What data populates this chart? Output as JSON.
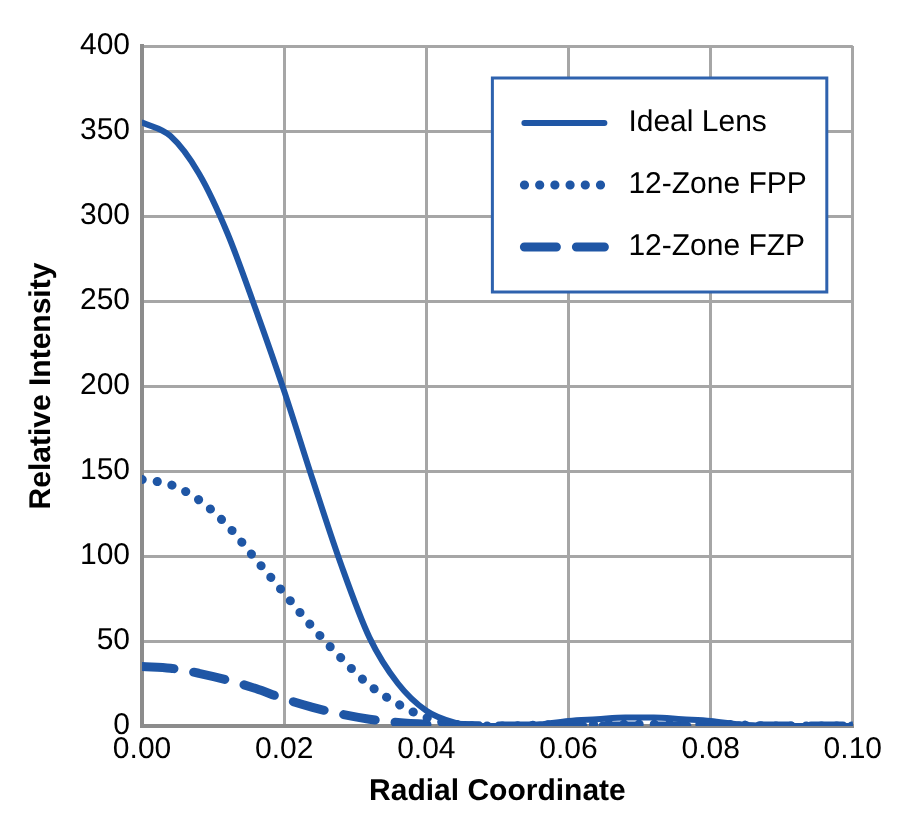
{
  "chart_data": {
    "type": "line",
    "xlabel": "Radial Coordinate",
    "ylabel": "Relative Intensity",
    "xlim": [
      0,
      0.1
    ],
    "xticks": [
      {
        "value": 0,
        "label": "0.00"
      },
      {
        "value": 0.02,
        "label": "0.02"
      },
      {
        "value": 0.04,
        "label": "0.04"
      },
      {
        "value": 0.06,
        "label": "0.06"
      },
      {
        "value": 0.08,
        "label": "0.08"
      },
      {
        "value": 0.1,
        "label": "0.10"
      }
    ],
    "ylim": [
      0,
      400
    ],
    "yticks": [
      0,
      50,
      100,
      150,
      200,
      250,
      300,
      350,
      400
    ],
    "grid": true,
    "legend": "top right",
    "marker": "none",
    "series": [
      {
        "name": "Ideal Lens",
        "color": "#1f56a5",
        "line_style": "solid",
        "x": [
          0,
          0.004,
          0.008,
          0.012,
          0.016,
          0.02,
          0.024,
          0.028,
          0.032,
          0.036,
          0.04,
          0.044,
          0.048,
          0.052,
          0.056,
          0.06,
          0.064,
          0.068,
          0.072,
          0.076,
          0.08,
          0.084,
          0.088,
          0.092,
          0.096,
          0.1
        ],
        "values": [
          355,
          347,
          325,
          290,
          245,
          197,
          145,
          95,
          52,
          25,
          9,
          2,
          0,
          0,
          1,
          3,
          4,
          5,
          5,
          4,
          3,
          1,
          0,
          0,
          0,
          0
        ]
      },
      {
        "name": "12-Zone FPP",
        "color": "#1f56a5",
        "line_style": "dotted",
        "x": [
          0,
          0.004,
          0.008,
          0.012,
          0.016,
          0.02,
          0.024,
          0.028,
          0.032,
          0.036,
          0.04,
          0.044,
          0.05,
          0.06,
          0.07,
          0.08,
          0.09,
          0.1
        ],
        "values": [
          145,
          142,
          133,
          118,
          98,
          78,
          58,
          40,
          24,
          13,
          5,
          1,
          0,
          1,
          1,
          1,
          0,
          0
        ]
      },
      {
        "name": "12-Zone FZP",
        "color": "#1f56a5",
        "line_style": "dashed",
        "x": [
          0,
          0.004,
          0.008,
          0.012,
          0.016,
          0.02,
          0.024,
          0.028,
          0.032,
          0.036,
          0.04,
          0.05,
          0.06,
          0.07,
          0.08,
          0.09,
          0.1
        ],
        "values": [
          35,
          34,
          31,
          27,
          22,
          16,
          11,
          7,
          4,
          2,
          1,
          0,
          0,
          0,
          0,
          0,
          0
        ]
      }
    ]
  }
}
